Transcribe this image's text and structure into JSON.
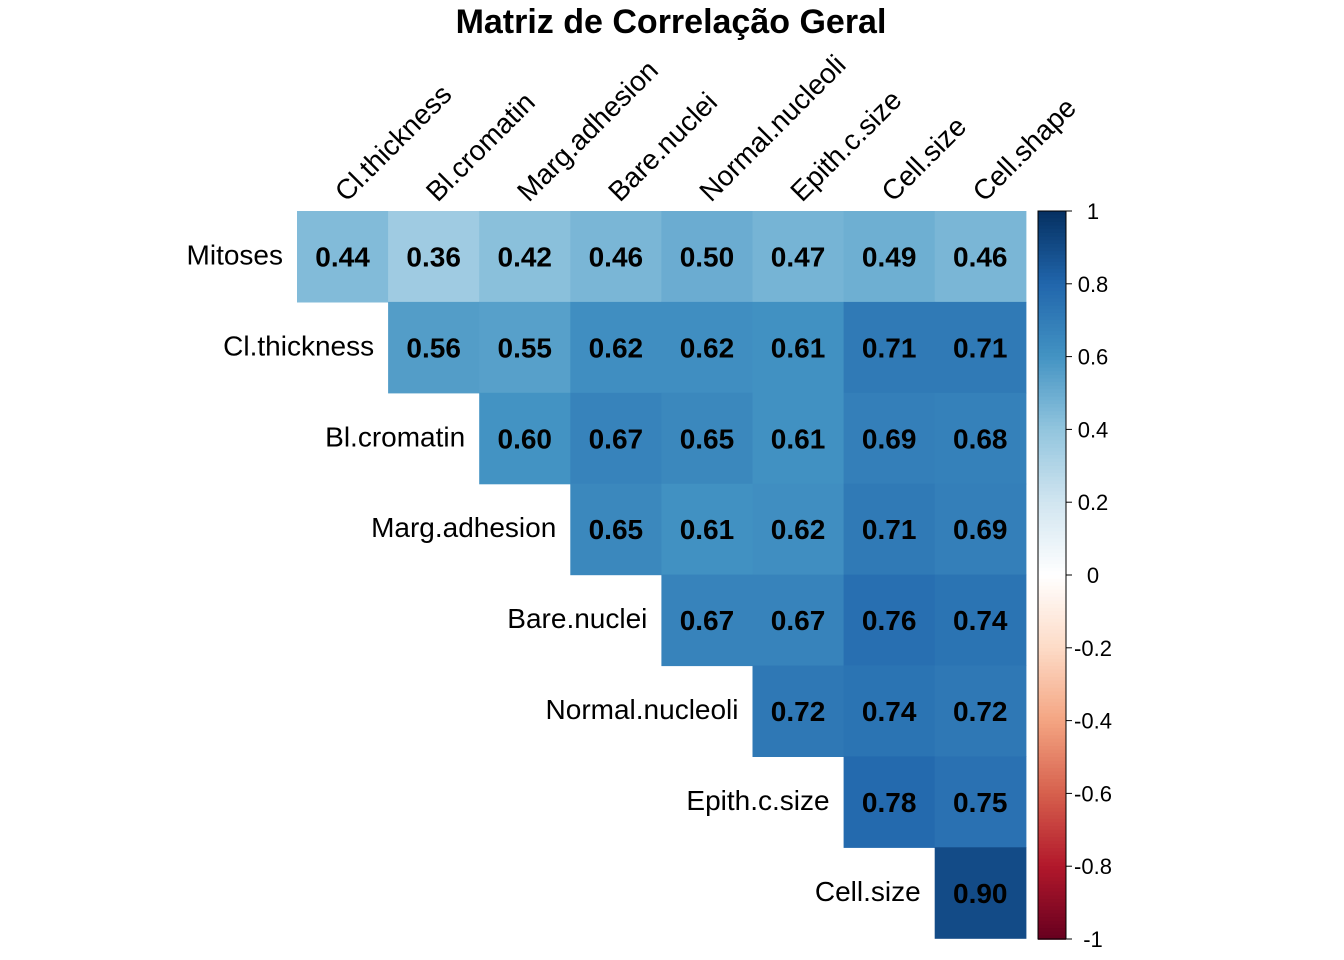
{
  "chart_data": {
    "type": "heatmap",
    "title": "Matriz de Correlação Geral",
    "columns": [
      "Cl.thickness",
      "Bl.cromatin",
      "Marg.adhesion",
      "Bare.nuclei",
      "Normal.nucleoli",
      "Epith.c.size",
      "Cell.size",
      "Cell.shape"
    ],
    "rows": [
      {
        "label": "Mitoses",
        "values": [
          "0.44",
          "0.36",
          "0.42",
          "0.46",
          "0.50",
          "0.47",
          "0.49",
          "0.46"
        ]
      },
      {
        "label": "Cl.thickness",
        "values": [
          null,
          "0.56",
          "0.55",
          "0.62",
          "0.62",
          "0.61",
          "0.71",
          "0.71"
        ]
      },
      {
        "label": "Bl.cromatin",
        "values": [
          null,
          null,
          "0.60",
          "0.67",
          "0.65",
          "0.61",
          "0.69",
          "0.68"
        ]
      },
      {
        "label": "Marg.adhesion",
        "values": [
          null,
          null,
          null,
          "0.65",
          "0.61",
          "0.62",
          "0.71",
          "0.69"
        ]
      },
      {
        "label": "Bare.nuclei",
        "values": [
          null,
          null,
          null,
          null,
          "0.67",
          "0.67",
          "0.76",
          "0.74"
        ]
      },
      {
        "label": "Normal.nucleoli",
        "values": [
          null,
          null,
          null,
          null,
          null,
          "0.72",
          "0.74",
          "0.72"
        ]
      },
      {
        "label": "Epith.c.size",
        "values": [
          null,
          null,
          null,
          null,
          null,
          null,
          "0.78",
          "0.75"
        ]
      },
      {
        "label": "Cell.size",
        "values": [
          null,
          null,
          null,
          null,
          null,
          null,
          null,
          "0.90"
        ]
      }
    ],
    "colorbar": {
      "range": [
        -1,
        1
      ],
      "ticks": [
        "1",
        "0.8",
        "0.6",
        "0.4",
        "0.2",
        "0",
        "-0.2",
        "-0.4",
        "-0.6",
        "-0.8",
        "-1"
      ],
      "palette": [
        "#67001F",
        "#B2182B",
        "#D6604D",
        "#F4A582",
        "#FDDBC7",
        "#FFFFFF",
        "#D1E5F0",
        "#92C5DE",
        "#4393C3",
        "#2166AC",
        "#053061"
      ]
    }
  }
}
